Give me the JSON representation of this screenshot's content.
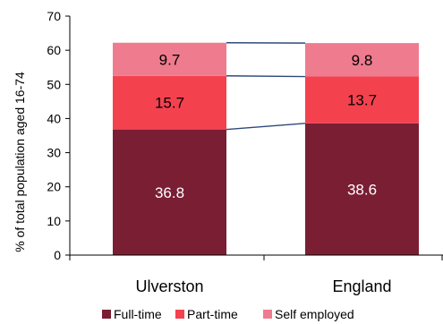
{
  "chart_data": {
    "type": "bar",
    "stacked": true,
    "categories": [
      "Ulverston",
      "England"
    ],
    "series": [
      {
        "name": "Full-time",
        "values": [
          36.8,
          38.6
        ],
        "color": "#7a1e34"
      },
      {
        "name": "Part-time",
        "values": [
          15.7,
          13.7
        ],
        "color": "#f4414e"
      },
      {
        "name": "Self employed",
        "values": [
          9.7,
          9.8
        ],
        "color": "#ef7b8f"
      }
    ],
    "data_labels": [
      [
        "36.8",
        "38.6"
      ],
      [
        "15.7",
        "13.7"
      ],
      [
        "9.7",
        "9.8"
      ]
    ],
    "ylabel": "% of total population aged 16-74",
    "xlabel": "",
    "ylim": [
      0,
      70
    ],
    "yticks": [
      "0",
      "10",
      "20",
      "30",
      "40",
      "50",
      "60",
      "70"
    ],
    "connector_color": "#2e4a7a",
    "grid": false,
    "legend_position": "bottom"
  }
}
